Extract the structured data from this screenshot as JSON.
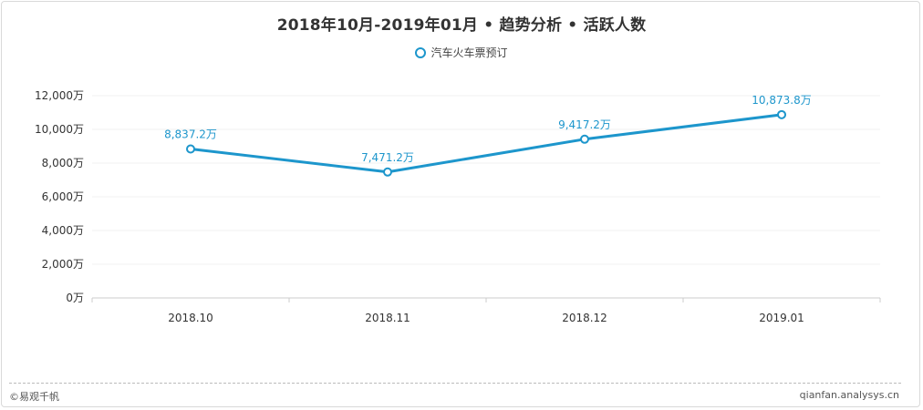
{
  "chart_data": {
    "type": "line",
    "title": "2018年10月-2019年01月 • 趋势分析 • 活跃人数",
    "categories": [
      "2018.10",
      "2018.11",
      "2018.12",
      "2019.01"
    ],
    "series": [
      {
        "name": "汽车火车票预订",
        "values": [
          8837.2,
          7471.2,
          9417.2,
          10873.8
        ],
        "data_labels": [
          "8,837.2万",
          "7,471.2万",
          "9,417.2万",
          "10,873.8万"
        ],
        "color": "#1d96cc"
      }
    ],
    "y_ticks": [
      0,
      2000,
      4000,
      6000,
      8000,
      10000,
      12000
    ],
    "y_tick_labels": [
      "0万",
      "2,000万",
      "4,000万",
      "6,000万",
      "8,000万",
      "10,000万",
      "12,000万"
    ],
    "ylim": [
      0,
      12000
    ],
    "xlabel": "",
    "ylabel": "",
    "grid": true,
    "legend_position": "top"
  },
  "footer": {
    "source": "©易观千帆",
    "url": "qianfan.analysys.cn"
  },
  "colors": {
    "line": "#1d96cc",
    "grid": "#f0f0f0",
    "axis": "#cccccc",
    "data_label": "#1d96cc"
  }
}
